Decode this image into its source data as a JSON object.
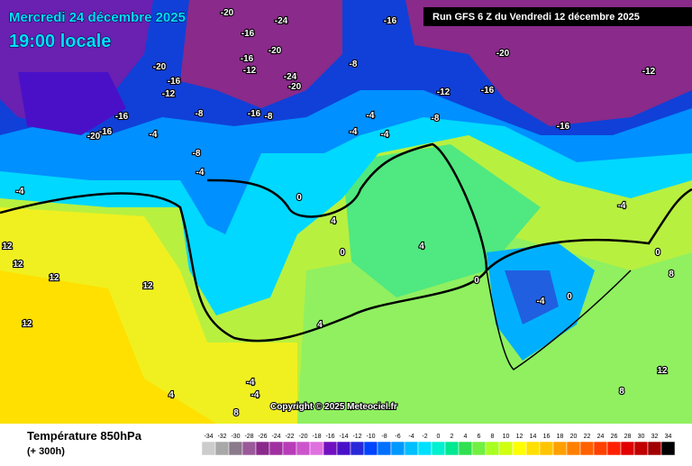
{
  "header": {
    "date": "Mercredi 24 décembre 2025",
    "time": "19:00 locale",
    "run": "Run GFS 6 Z du Vendredi 12 décembre 2025"
  },
  "footer": {
    "title": "Température 850hPa",
    "lead": "(+ 300h)",
    "copyright": "Copyright © 2025 Meteociel.fr"
  },
  "legend": {
    "values": [
      -34,
      -32,
      -30,
      -28,
      -26,
      -24,
      -22,
      -20,
      -18,
      -16,
      -14,
      -12,
      -10,
      -8,
      -6,
      -4,
      -2,
      0,
      2,
      4,
      6,
      8,
      10,
      12,
      14,
      16,
      18,
      20,
      22,
      24,
      26,
      28,
      30,
      32,
      34
    ],
    "colors": [
      "#cccccc",
      "#a8a8a8",
      "#8a7a8a",
      "#9a5a9a",
      "#8a2a8a",
      "#a030a0",
      "#b83cb8",
      "#cc55cc",
      "#e070e0",
      "#7010c0",
      "#4a10c8",
      "#2828d8",
      "#0044ff",
      "#0070ff",
      "#0098ff",
      "#00c0ff",
      "#00e0ff",
      "#00f0d0",
      "#00e890",
      "#30e050",
      "#70f040",
      "#a8ff20",
      "#d0ff10",
      "#ffff00",
      "#ffe000",
      "#ffc400",
      "#ffa000",
      "#ff8000",
      "#ff6000",
      "#ff4000",
      "#ff2000",
      "#e00000",
      "#c00000",
      "#a00000",
      "#000000"
    ]
  },
  "contour_labels": [
    -20,
    -24,
    -16,
    -16,
    -20,
    -16,
    -12,
    -24,
    -20,
    -20,
    -16,
    -12,
    -16,
    -16,
    -20,
    -4,
    -8,
    -16,
    -8,
    -8,
    -20,
    -12,
    -16,
    -12,
    -16,
    -8,
    -4,
    -4,
    -4,
    -8,
    -4,
    -4,
    0,
    4,
    0,
    4,
    0,
    -4,
    0,
    -4,
    0,
    12,
    12,
    12,
    12,
    12,
    8,
    12,
    8,
    -4,
    -4,
    4,
    4,
    8
  ]
}
